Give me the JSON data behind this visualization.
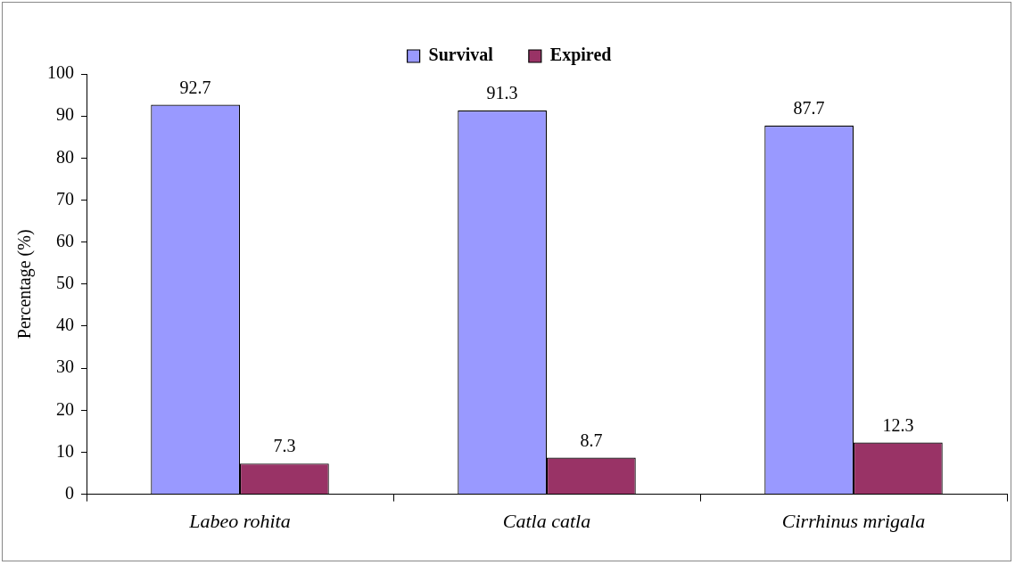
{
  "chart_data": {
    "type": "bar",
    "ylabel": "Percentage (%)",
    "categories": [
      "Labeo rohita",
      "Catla catla",
      "Cirrhinus mrigala"
    ],
    "series": [
      {
        "name": "Survival",
        "color": "#9999ff",
        "values": [
          92.7,
          91.3,
          87.7
        ]
      },
      {
        "name": "Expired",
        "color": "#993366",
        "values": [
          7.3,
          8.7,
          12.3
        ]
      }
    ],
    "ylim": [
      0,
      100
    ],
    "yticks": [
      0,
      10,
      20,
      30,
      40,
      50,
      60,
      70,
      80,
      90,
      100
    ],
    "grid": false,
    "legend": "top",
    "data_labels": true
  }
}
